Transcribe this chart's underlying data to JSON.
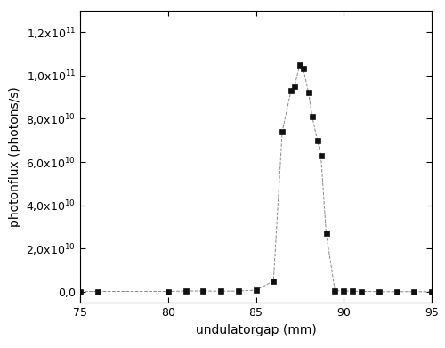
{
  "x": [
    75,
    76,
    80,
    81,
    82,
    83,
    84,
    85,
    86,
    86.5,
    87,
    87.2,
    87.5,
    87.7,
    88,
    88.2,
    88.5,
    88.7,
    89,
    89.5,
    90,
    90.5,
    91,
    92,
    93,
    94,
    95
  ],
  "y": [
    200000000.0,
    200000000.0,
    200000000.0,
    400000000.0,
    400000000.0,
    300000000.0,
    400000000.0,
    800000000.0,
    5000000000.0,
    74000000000.0,
    93000000000.0,
    95000000000.0,
    105000000000.0,
    103000000000.0,
    92000000000.0,
    81000000000.0,
    70000000000.0,
    63000000000.0,
    27000000000.0,
    500000000.0,
    500000000.0,
    300000000.0,
    200000000.0,
    100000000.0,
    100000000.0,
    100000000.0,
    50000000.0
  ],
  "xlabel": "undulatorgap (mm)",
  "ylabel": "photonflux (photons/s)",
  "xlim": [
    75,
    95
  ],
  "ylim": [
    -5000000000.0,
    130000000000.0
  ],
  "yticks": [
    0,
    20000000000.0,
    40000000000.0,
    60000000000.0,
    80000000000.0,
    100000000000.0,
    120000000000.0
  ],
  "xticks": [
    75,
    80,
    85,
    90,
    95
  ],
  "line_color": "#888888",
  "marker_color": "#111111",
  "marker": "s",
  "marker_size": 4.5,
  "line_style": "--",
  "line_width": 0.7,
  "tick_fontsize": 9,
  "label_fontsize": 10,
  "fig_width": 5.0,
  "fig_height": 3.91,
  "dpi": 100
}
